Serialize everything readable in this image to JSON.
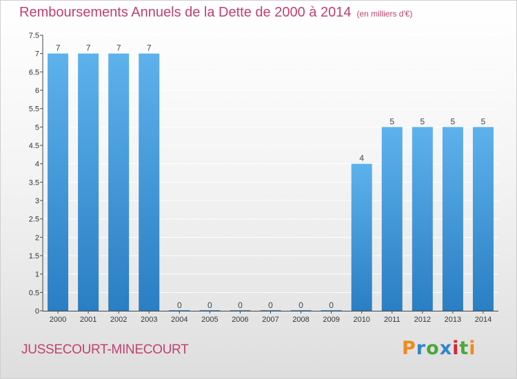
{
  "header": {
    "title": "Remboursements Annuels de la Dette de 2000 à 2014",
    "unit": "(en milliers d'€)"
  },
  "footer": {
    "commune": "JUSSECOURT-MINECOURT",
    "logo": "Proxiti"
  },
  "colors": {
    "title": "#c0406f",
    "bar_top": "#5db2ec",
    "bar_bottom": "#2a7ec3"
  },
  "chart_data": {
    "type": "bar",
    "categories": [
      "2000",
      "2001",
      "2002",
      "2003",
      "2004",
      "2005",
      "2006",
      "2007",
      "2008",
      "2009",
      "2010",
      "2011",
      "2012",
      "2013",
      "2014"
    ],
    "values": [
      7,
      7,
      7,
      7,
      0,
      0,
      0,
      0,
      0,
      0,
      4,
      5,
      5,
      5,
      5
    ],
    "data_labels": [
      "7",
      "7",
      "7",
      "7",
      "0",
      "0",
      "0",
      "0",
      "0",
      "0",
      "4",
      "5",
      "5",
      "5",
      "5"
    ],
    "y_ticks": [
      "0",
      "0.5",
      "1",
      "1.5",
      "2",
      "2.5",
      "3",
      "3.5",
      "4",
      "4.5",
      "5",
      "5.5",
      "6",
      "6.5",
      "7",
      "7.5"
    ],
    "ylim": [
      0,
      7.5
    ],
    "grid": true
  }
}
